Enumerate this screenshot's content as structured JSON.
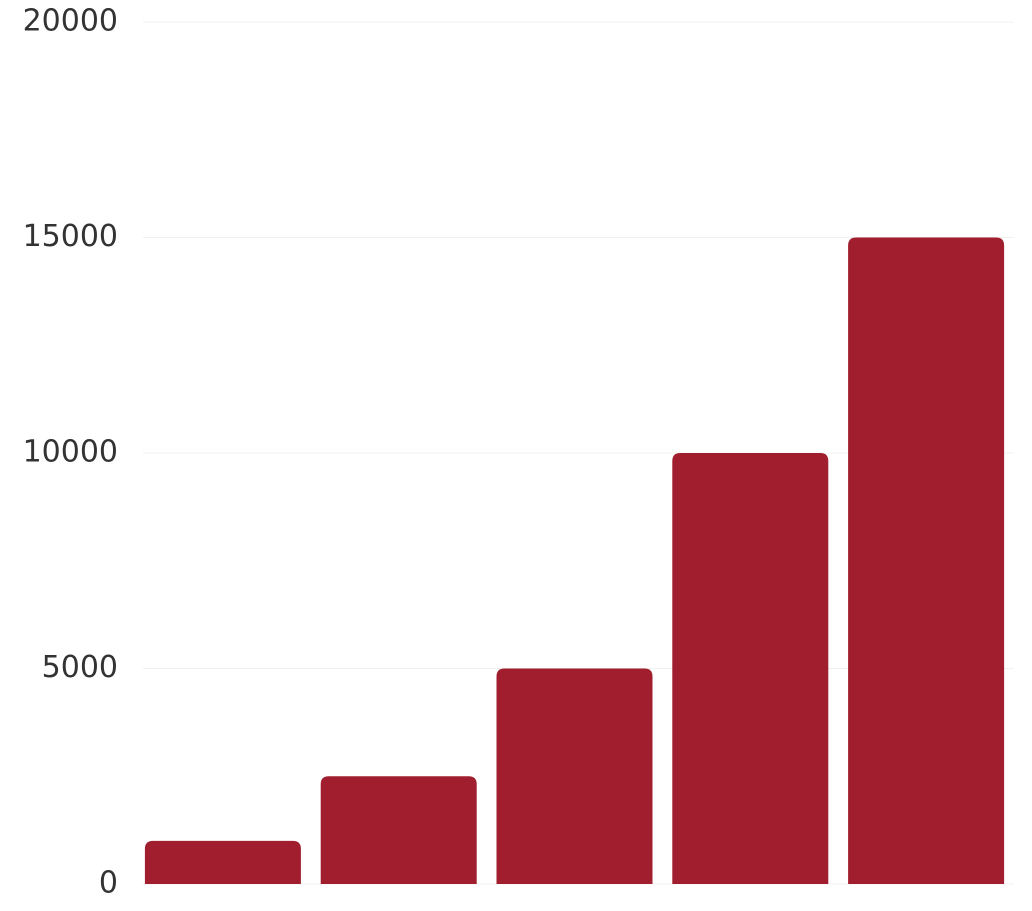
{
  "chart_data": {
    "type": "bar",
    "categories": [
      null,
      null,
      null,
      null,
      null
    ],
    "values": [
      1000,
      2500,
      5000,
      10000,
      15000
    ],
    "color": "#a01e2e",
    "ylim": [
      0,
      20000
    ],
    "yticks": [
      0,
      5000,
      10000,
      15000,
      20000
    ],
    "grid": true
  }
}
